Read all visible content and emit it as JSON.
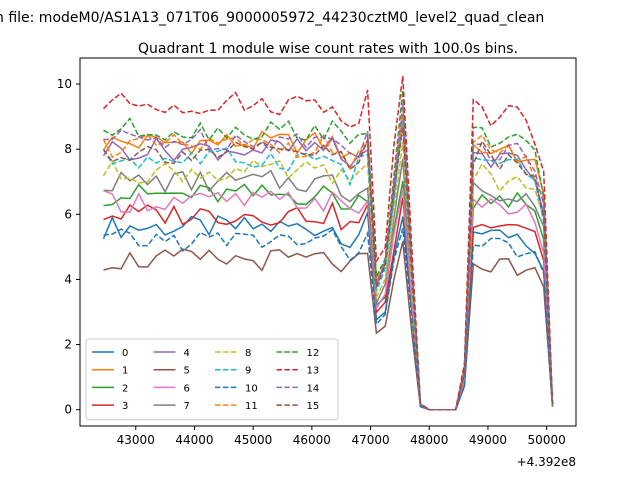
{
  "figure": {
    "suptitle": "n file: modeM0/AS1A13_071T06_9000005972_44230cztM0_level2_quad_clean",
    "title": "Quadrant 1 module wise count rates with 100.0s bins.",
    "x_offset_label": "+4.392e8"
  },
  "chart_data": {
    "type": "line",
    "title": "Quadrant 1 module wise count rates with 100.0s bins.",
    "xlabel": "",
    "ylabel": "",
    "x_offset": 439200000,
    "xlim": [
      42050,
      50500
    ],
    "ylim": [
      -0.5,
      10.8
    ],
    "xticks": [
      43000,
      44000,
      45000,
      46000,
      47000,
      48000,
      49000,
      50000
    ],
    "xtick_labels": [
      "43000",
      "44000",
      "45000",
      "46000",
      "47000",
      "48000",
      "49000",
      "50000"
    ],
    "yticks": [
      0,
      2,
      4,
      6,
      8,
      10
    ],
    "ytick_labels": [
      "0",
      "2",
      "4",
      "6",
      "8",
      "10"
    ],
    "grid": false,
    "legend": {
      "placement": "lower-left",
      "columns": 4
    },
    "x_sampled": [
      42450,
      42600,
      42750,
      42900,
      43050,
      43200,
      43350,
      43500,
      43650,
      43800,
      43950,
      44100,
      44250,
      44400,
      44550,
      44700,
      44850,
      45000,
      45150,
      45300,
      45450,
      45600,
      45750,
      45900,
      46050,
      46200,
      46350,
      46500,
      46650,
      46800,
      46950,
      47100,
      47250,
      47400,
      47550,
      47700,
      47850,
      48000,
      48150,
      48300,
      48450,
      48600,
      48750,
      48900,
      49050,
      49200,
      49350,
      49500,
      49650,
      49800,
      49950,
      50100
    ],
    "profile": [
      1.0,
      1.0,
      1.0,
      1.0,
      1.0,
      1.0,
      1.0,
      1.0,
      1.0,
      1.0,
      1.0,
      1.0,
      1.0,
      1.0,
      1.0,
      1.0,
      1.0,
      1.0,
      1.0,
      1.0,
      1.0,
      1.0,
      1.0,
      1.0,
      1.0,
      1.0,
      1.0,
      0.97,
      0.93,
      0.97,
      1.02,
      0.48,
      0.55,
      0.85,
      1.1,
      0.55,
      0.02,
      0.0,
      0.0,
      0.0,
      0.0,
      0.15,
      0.98,
      1.0,
      0.96,
      0.95,
      0.97,
      0.96,
      0.94,
      0.9,
      0.78,
      0.02
    ],
    "series": [
      {
        "name": "0",
        "color": "#1f77b4",
        "dash": "solid",
        "level": 5.6
      },
      {
        "name": "1",
        "color": "#ff7f0e",
        "dash": "solid",
        "level": 8.2
      },
      {
        "name": "2",
        "color": "#2ca02c",
        "dash": "solid",
        "level": 6.6
      },
      {
        "name": "3",
        "color": "#d62728",
        "dash": "solid",
        "level": 6.0
      },
      {
        "name": "4",
        "color": "#9467bd",
        "dash": "solid",
        "level": 8.0
      },
      {
        "name": "5",
        "color": "#8c564b",
        "dash": "solid",
        "level": 4.6
      },
      {
        "name": "6",
        "color": "#e377c2",
        "dash": "solid",
        "level": 6.4
      },
      {
        "name": "7",
        "color": "#7f7f7f",
        "dash": "solid",
        "level": 7.0
      },
      {
        "name": "8",
        "color": "#bcbd22",
        "dash": "dashed",
        "level": 7.3
      },
      {
        "name": "9",
        "color": "#17becf",
        "dash": "dashed",
        "level": 7.7
      },
      {
        "name": "10",
        "color": "#1f77b4",
        "dash": "dashed",
        "level": 5.2
      },
      {
        "name": "11",
        "color": "#ff7f0e",
        "dash": "dashed",
        "level": 8.1
      },
      {
        "name": "12",
        "color": "#2ca02c",
        "dash": "dashed",
        "level": 8.6
      },
      {
        "name": "13",
        "color": "#d62728",
        "dash": "dashed",
        "level": 9.4
      },
      {
        "name": "14",
        "color": "#9467bd",
        "dash": "dashed",
        "level": 8.3
      },
      {
        "name": "15",
        "color": "#8c564b",
        "dash": "dashed",
        "level": 7.9
      }
    ]
  }
}
